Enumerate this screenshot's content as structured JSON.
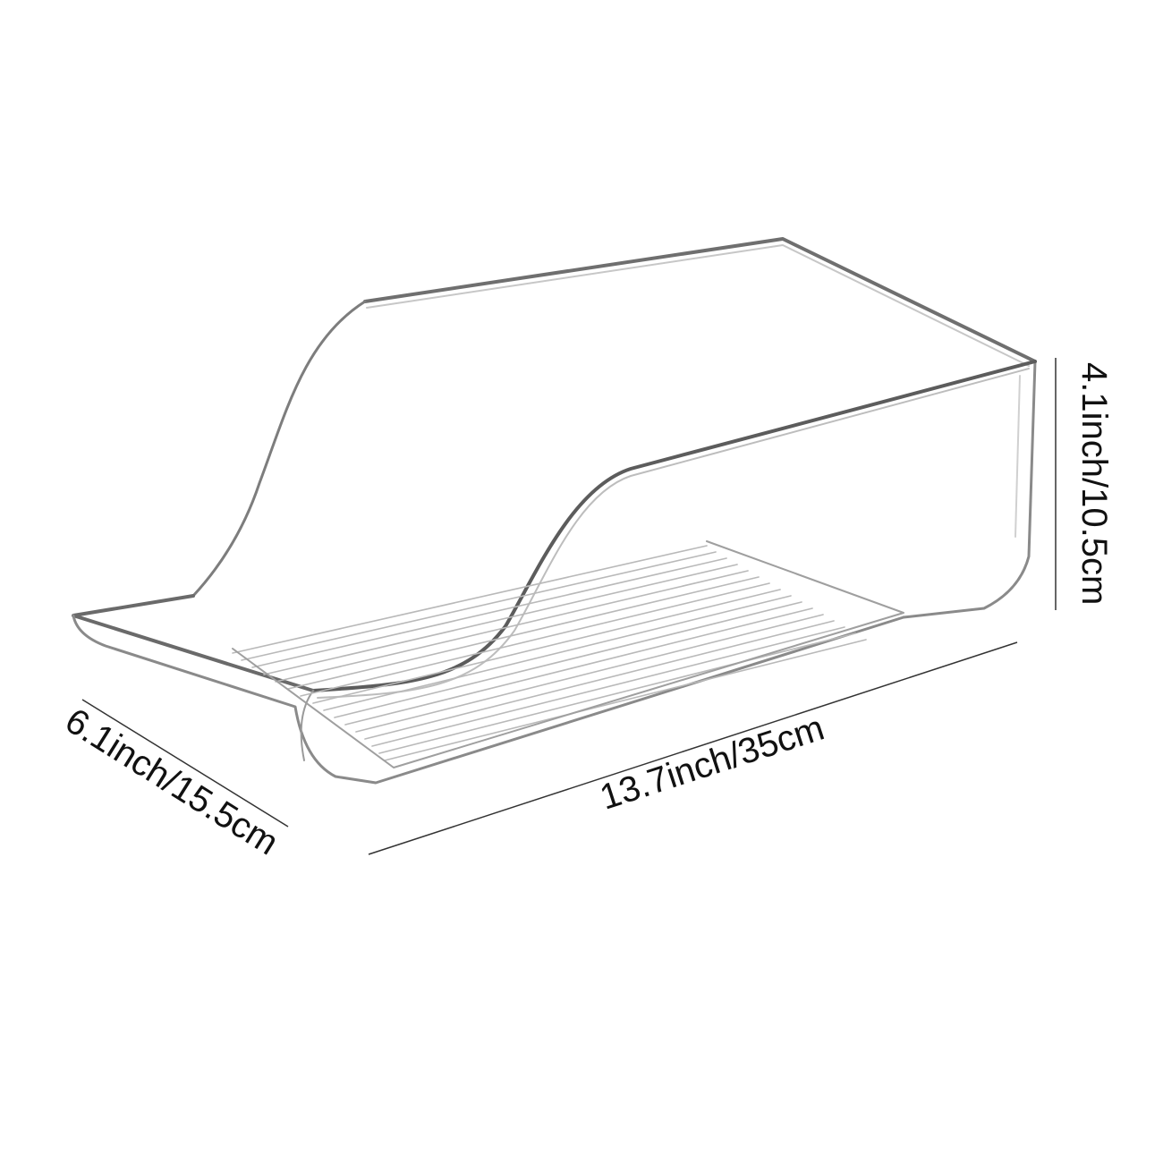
{
  "product": {
    "icon": "clear-plastic-fridge-bin",
    "colors": {
      "outline": "#7d7d7d",
      "rib": "#b9b9b9",
      "background": "#ffffff",
      "text": "#111111"
    }
  },
  "dimensions": {
    "height": "4.1inch/10.5cm",
    "length": "13.7inch/35cm",
    "width": "6.1inch/15.5cm"
  }
}
